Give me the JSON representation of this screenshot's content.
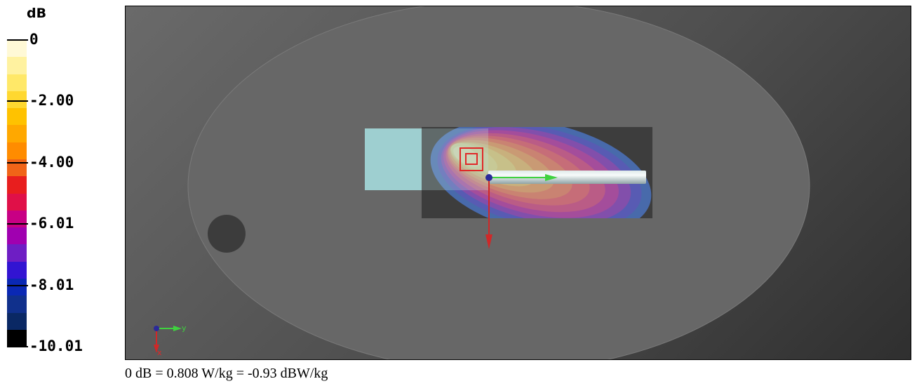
{
  "legend": {
    "unit": "dB",
    "labels": [
      {
        "text": "0",
        "value": 0
      },
      {
        "text": "-2.00",
        "value": -2.0
      },
      {
        "text": "-4.00",
        "value": -4.0
      },
      {
        "text": "-6.01",
        "value": -6.01
      },
      {
        "text": "-8.01",
        "value": -8.01
      },
      {
        "text": "-10.01",
        "value": -10.01
      }
    ],
    "min": -10.01,
    "max": 0,
    "colors": [
      "#fff9d6",
      "#fff2a0",
      "#ffe868",
      "#ffd830",
      "#ffc200",
      "#ffa800",
      "#ff8c00",
      "#f06418",
      "#e81e1e",
      "#e01048",
      "#c80084",
      "#a000b0",
      "#6e1ec4",
      "#3214d2",
      "#0a28b4",
      "#10308c",
      "#0a2864",
      "#000000"
    ]
  },
  "viewport": {
    "axis_triad": {
      "y_label": "y",
      "x_label": "x"
    },
    "colors": {
      "phantom": "#6b6b6b",
      "cube": "#9ecfd0",
      "marker": "#e02828",
      "y_axis": "#3fd23f",
      "x_axis": "#d02828",
      "origin": "#2a2a9a"
    }
  },
  "footnote": "0 dB = 0.808 W/kg = -0.93 dBW/kg"
}
